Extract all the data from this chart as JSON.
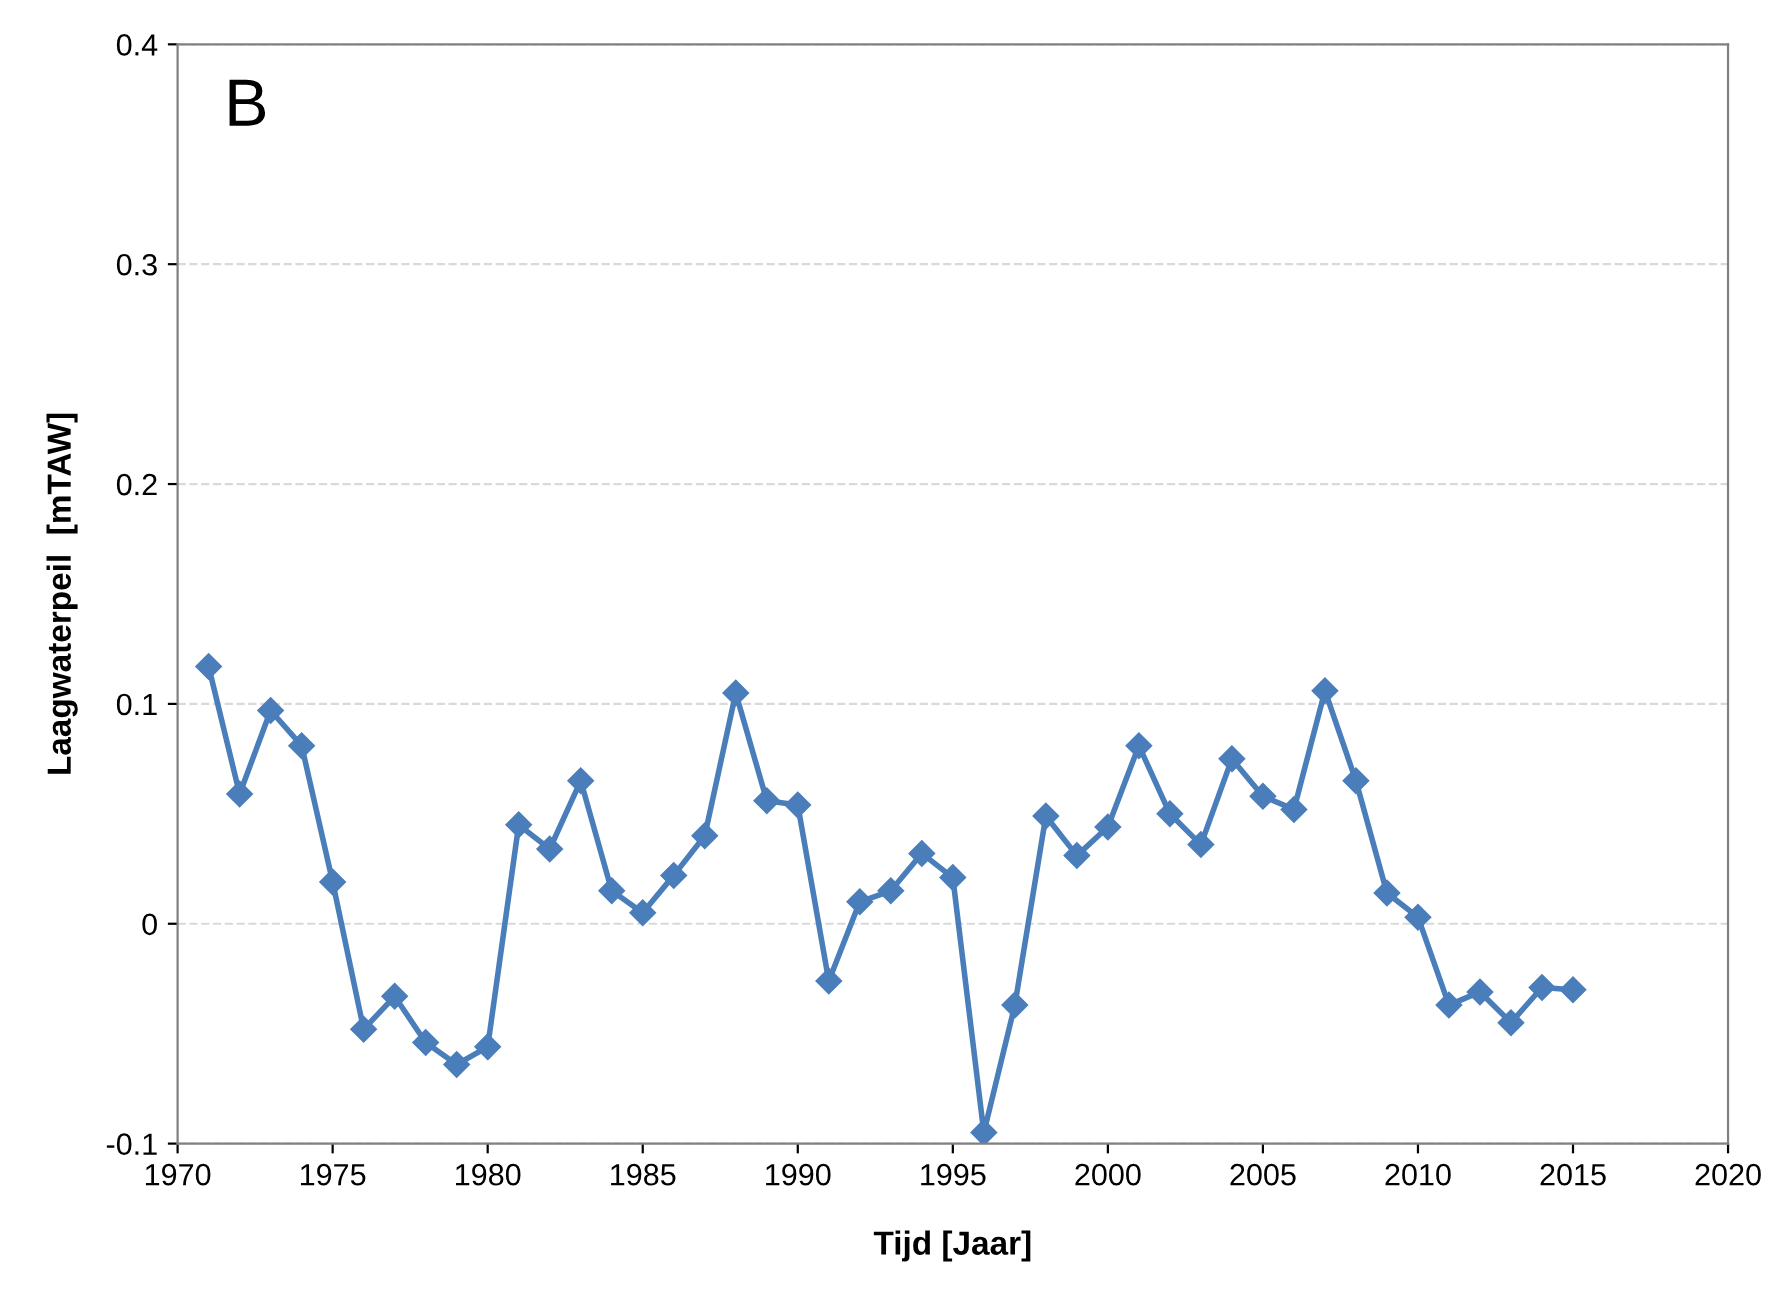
{
  "chart_data": {
    "type": "line",
    "xlabel": "Tijd [Jaar]",
    "ylabel": "Laagwaterpeil  [mTAW]",
    "annotations": [
      "B"
    ],
    "x": [
      1971,
      1972,
      1973,
      1974,
      1975,
      1976,
      1977,
      1978,
      1979,
      1980,
      1981,
      1982,
      1983,
      1984,
      1985,
      1986,
      1987,
      1988,
      1989,
      1990,
      1991,
      1992,
      1993,
      1994,
      1995,
      1996,
      1997,
      1998,
      1999,
      2000,
      2001,
      2002,
      2003,
      2004,
      2005,
      2006,
      2007,
      2008,
      2009,
      2010,
      2011,
      2012,
      2013,
      2014,
      2015
    ],
    "series": [
      {
        "color": "#4a7ebb",
        "values": [
          0.117,
          0.059,
          0.097,
          0.081,
          0.019,
          -0.048,
          -0.033,
          -0.054,
          -0.064,
          -0.056,
          0.045,
          0.034,
          0.065,
          0.015,
          0.005,
          0.022,
          0.04,
          0.105,
          0.056,
          0.054,
          -0.026,
          0.01,
          0.015,
          0.032,
          0.021,
          -0.095,
          -0.037,
          0.049,
          0.031,
          0.044,
          0.081,
          0.05,
          0.036,
          0.075,
          0.058,
          0.052,
          0.106,
          0.065,
          0.014,
          0.003,
          -0.037,
          -0.031,
          -0.045,
          -0.029,
          -0.03
        ]
      }
    ],
    "xlim": [
      1970,
      2020
    ],
    "xticks": [
      1970,
      1975,
      1980,
      1985,
      1990,
      1995,
      2000,
      2005,
      2010,
      2015,
      2020
    ],
    "ylim": [
      -0.1,
      0.4
    ],
    "yticks": [
      -0.1,
      0,
      0.1,
      0.2,
      0.3,
      0.4
    ],
    "grid": "y",
    "legend": false,
    "marker": "diamond",
    "line_style": "solid"
  }
}
